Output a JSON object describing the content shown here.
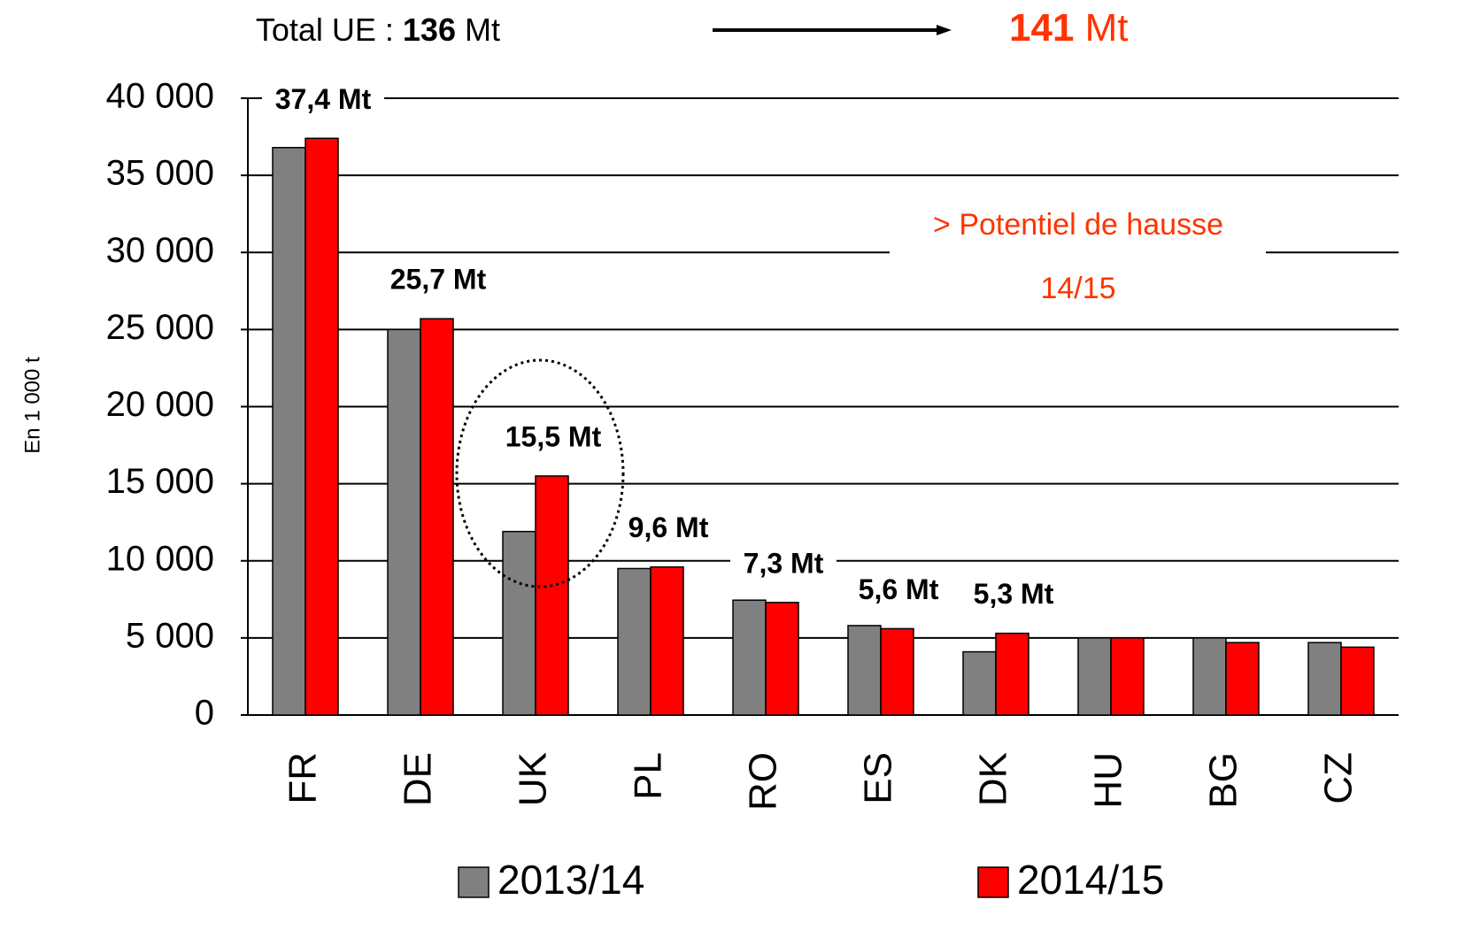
{
  "chart_data": {
    "type": "bar",
    "header": {
      "total_label": "Total UE :",
      "total_before": "136",
      "unit": "Mt",
      "total_after": "141"
    },
    "annotation": [
      "> Potentiel de hausse",
      "14/15"
    ],
    "ylabel": "En 1 000 t",
    "categories": [
      "FR",
      "DE",
      "UK",
      "PL",
      "RO",
      "ES",
      "DK",
      "HU",
      "BG",
      "CZ"
    ],
    "series": [
      {
        "name": "2013/14",
        "color": "#808080",
        "values": [
          36800,
          25000,
          11900,
          9500,
          7450,
          5800,
          4100,
          5000,
          5000,
          4700
        ]
      },
      {
        "name": "2014/15",
        "color": "#ff0000",
        "values": [
          37400,
          25700,
          15500,
          9600,
          7300,
          5600,
          5300,
          5000,
          4700,
          4400
        ],
        "value_labels": [
          "37,4 Mt",
          "25,7 Mt",
          "15,5 Mt",
          "9,6 Mt",
          "7,3 Mt",
          "5,6 Mt",
          "5,3 Mt",
          null,
          null,
          null
        ]
      }
    ],
    "ylim": [
      0,
      40000
    ],
    "yticks": [
      0,
      {
        "value": 5000,
        "label": "5 000"
      },
      {
        "value": 10000,
        "label": "10 000"
      },
      {
        "value": 15000,
        "label": "15 000"
      },
      {
        "value": 20000,
        "label": "20 000"
      },
      {
        "value": 25000,
        "label": "25 000"
      },
      {
        "value": 30000,
        "label": "30 000"
      },
      {
        "value": 35000,
        "label": "35 000"
      },
      {
        "value": 40000,
        "label": "40 000"
      }
    ],
    "grid": true
  }
}
